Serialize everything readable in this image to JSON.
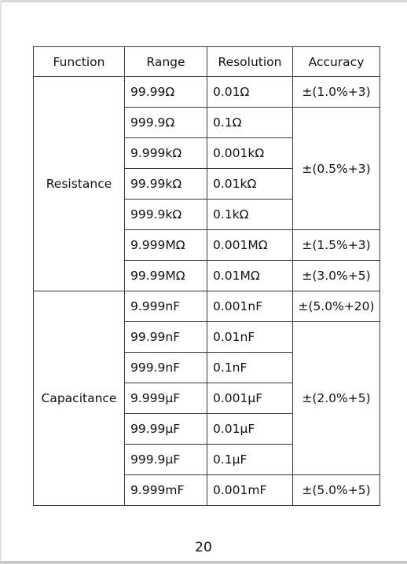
{
  "table": {
    "headers": [
      "Function",
      "Range",
      "Resolution",
      "Accuracy"
    ],
    "resistance": {
      "function": "Resistance",
      "rows": [
        {
          "range": "99.99Ω",
          "resolution": "0.01Ω",
          "accuracy": "±(1.0%+3)"
        },
        {
          "range": "999.9Ω",
          "resolution": "0.1Ω",
          "accuracy": "±(0.5%+3)"
        },
        {
          "range": "9.999kΩ",
          "resolution": "0.001kΩ"
        },
        {
          "range": "99.99kΩ",
          "resolution": "0.01kΩ"
        },
        {
          "range": "999.9kΩ",
          "resolution": "0.1kΩ"
        },
        {
          "range": "9.999MΩ",
          "resolution": "0.001MΩ",
          "accuracy": "±(1.5%+3)"
        },
        {
          "range": "99.99MΩ",
          "resolution": "0.01MΩ",
          "accuracy": "±(3.0%+5)"
        }
      ]
    },
    "capacitance": {
      "function": "Capacitance",
      "rows": [
        {
          "range": "9.999nF",
          "resolution": "0.001nF",
          "accuracy": "±(5.0%+20)"
        },
        {
          "range": "99.99nF",
          "resolution": "0.01nF",
          "accuracy": "±(2.0%+5)"
        },
        {
          "range": "999.9nF",
          "resolution": "0.1nF"
        },
        {
          "range": "9.999μF",
          "resolution": "0.001μF"
        },
        {
          "range": "99.99μF",
          "resolution": "0.01μF"
        },
        {
          "range": "999.9μF",
          "resolution": "0.1μF"
        },
        {
          "range": "9.999mF",
          "resolution": "0.001mF",
          "accuracy": "±(5.0%+5)"
        }
      ]
    }
  },
  "page_number": "20"
}
